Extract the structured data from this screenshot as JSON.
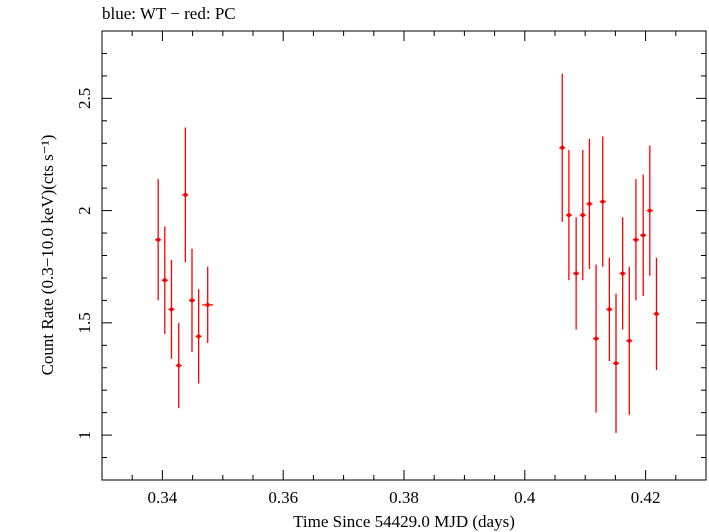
{
  "chart_data": {
    "type": "scatter",
    "title": "blue: WT − red: PC",
    "xlabel": "Time Since 54429.0 MJD (days)",
    "ylabel": "Count Rate (0.3−10.0 keV)(cts s⁻¹)",
    "xlim": [
      0.33,
      0.43
    ],
    "ylim": [
      0.8,
      2.8
    ],
    "xticks": [
      0.34,
      0.36,
      0.38,
      0.4,
      0.42
    ],
    "xtick_labels": [
      "0.34",
      "0.36",
      "0.38",
      "0.4",
      "0.42"
    ],
    "yticks": [
      1,
      1.5,
      2,
      2.5
    ],
    "ytick_labels": [
      "1",
      "1.5",
      "2",
      "2.5"
    ],
    "grid": false,
    "series": [
      {
        "color": "#ff0000",
        "points": [
          {
            "x": 0.3393,
            "y": 1.87,
            "yerr": 0.27,
            "xerr": 0.0005
          },
          {
            "x": 0.3404,
            "y": 1.69,
            "yerr": 0.24,
            "xerr": 0.0005
          },
          {
            "x": 0.3415,
            "y": 1.56,
            "yerr": 0.22,
            "xerr": 0.0005
          },
          {
            "x": 0.3427,
            "y": 1.31,
            "yerr": 0.19,
            "xerr": 0.0005
          },
          {
            "x": 0.3438,
            "y": 2.07,
            "yerr": 0.3,
            "xerr": 0.0005
          },
          {
            "x": 0.3449,
            "y": 1.6,
            "yerr": 0.23,
            "xerr": 0.0005
          },
          {
            "x": 0.346,
            "y": 1.44,
            "yerr": 0.21,
            "xerr": 0.0005
          },
          {
            "x": 0.3475,
            "y": 1.58,
            "yerr": 0.17,
            "xerr": 0.0009
          },
          {
            "x": 0.4062,
            "y": 2.28,
            "yerr": 0.33,
            "xerr": 0.0005
          },
          {
            "x": 0.4073,
            "y": 1.98,
            "yerr": 0.29,
            "xerr": 0.0005
          },
          {
            "x": 0.4085,
            "y": 1.72,
            "yerr": 0.25,
            "xerr": 0.0005
          },
          {
            "x": 0.4096,
            "y": 1.98,
            "yerr": 0.29,
            "xerr": 0.0005
          },
          {
            "x": 0.4107,
            "y": 2.03,
            "yerr": 0.29,
            "xerr": 0.0005
          },
          {
            "x": 0.4118,
            "y": 1.43,
            "yerr": 0.33,
            "xerr": 0.0005
          },
          {
            "x": 0.4129,
            "y": 2.04,
            "yerr": 0.29,
            "xerr": 0.0005
          },
          {
            "x": 0.414,
            "y": 1.56,
            "yerr": 0.23,
            "xerr": 0.0005
          },
          {
            "x": 0.4151,
            "y": 1.32,
            "yerr": 0.31,
            "xerr": 0.0005
          },
          {
            "x": 0.4162,
            "y": 1.72,
            "yerr": 0.25,
            "xerr": 0.0005
          },
          {
            "x": 0.4173,
            "y": 1.42,
            "yerr": 0.33,
            "xerr": 0.0005
          },
          {
            "x": 0.4184,
            "y": 1.87,
            "yerr": 0.27,
            "xerr": 0.0005
          },
          {
            "x": 0.4196,
            "y": 1.89,
            "yerr": 0.27,
            "xerr": 0.0005
          },
          {
            "x": 0.4207,
            "y": 2.0,
            "yerr": 0.29,
            "xerr": 0.0005
          },
          {
            "x": 0.4218,
            "y": 1.54,
            "yerr": 0.25,
            "xerr": 0.0005
          }
        ]
      }
    ]
  }
}
